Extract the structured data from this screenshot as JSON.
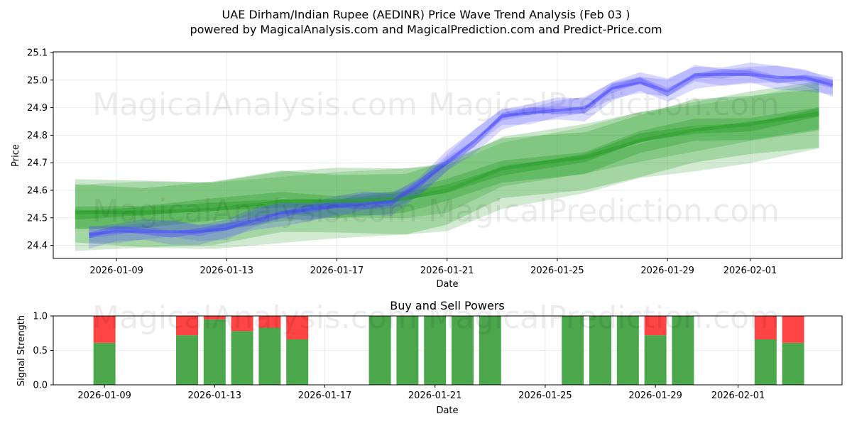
{
  "title_line1": "UAE Dirham/Indian Rupee (AEDINR) Price Wave Trend Analysis (Feb 03 )",
  "title_line2": "powered by MagicalAnalysis.com and MagicalPrediction.com and Predict-Price.com",
  "watermarks": [
    "MagicalAnalysis.com",
    "MagicalPrediction.com"
  ],
  "colors": {
    "green": "#2ca02c",
    "blue": "#4444ff",
    "buy": "#4ca64c",
    "sell": "#ff4444"
  },
  "chart_data": [
    {
      "type": "line",
      "title": "",
      "xlabel": "Date",
      "ylabel": "Price",
      "ylim": [
        24.35,
        25.1
      ],
      "xlim": [
        0,
        28.3
      ],
      "x_ticks": [
        {
          "d": 2,
          "label": "2026-01-09"
        },
        {
          "d": 6,
          "label": "2026-01-13"
        },
        {
          "d": 10,
          "label": "2026-01-17"
        },
        {
          "d": 14,
          "label": "2026-01-21"
        },
        {
          "d": 18,
          "label": "2026-01-25"
        },
        {
          "d": 22,
          "label": "2026-01-29"
        },
        {
          "d": 25,
          "label": "2026-02-01"
        }
      ],
      "y_ticks": [
        24.4,
        24.5,
        24.6,
        24.7,
        24.8,
        24.9,
        25.0,
        25.1
      ],
      "series": [
        {
          "name": "price wave (blue)",
          "x": [
            1,
            2,
            3,
            4,
            5,
            6,
            7,
            8,
            9,
            10,
            11,
            12,
            13,
            14,
            15,
            16,
            17,
            18,
            19,
            20,
            21,
            22,
            23,
            24,
            25,
            26,
            27,
            28
          ],
          "values": [
            24.44,
            24.45,
            24.45,
            24.45,
            24.45,
            24.46,
            24.49,
            24.52,
            24.53,
            24.54,
            24.55,
            24.56,
            24.62,
            24.7,
            24.78,
            24.87,
            24.88,
            24.89,
            24.9,
            24.97,
            24.99,
            24.96,
            25.02,
            25.02,
            25.02,
            25.01,
            25.01,
            24.98
          ]
        },
        {
          "name": "trend wave (green)",
          "x": [
            0.5,
            3,
            5.5,
            8,
            10,
            12.5,
            14,
            16,
            19,
            21,
            23,
            25,
            27.5
          ],
          "values": [
            24.52,
            24.52,
            24.53,
            24.56,
            24.56,
            24.57,
            24.6,
            24.68,
            24.72,
            24.78,
            24.82,
            24.84,
            24.88
          ]
        }
      ]
    },
    {
      "type": "bar",
      "title": "Buy and Sell Powers",
      "xlabel": "Date",
      "ylabel": "Signal Strength",
      "ylim": [
        0,
        1
      ],
      "y_ticks": [
        "0.0",
        "0.5",
        "1.0"
      ],
      "series": [
        {
          "name": "buy",
          "x": [
            2,
            5,
            6,
            7,
            8,
            9,
            12,
            13,
            14,
            15,
            16,
            19,
            20,
            21,
            22,
            23,
            26,
            27
          ],
          "values": [
            0.61,
            0.72,
            0.95,
            0.78,
            0.83,
            0.66,
            1.0,
            1.0,
            1.0,
            1.0,
            1.0,
            1.0,
            1.0,
            1.0,
            0.72,
            1.0,
            0.66,
            0.61
          ]
        },
        {
          "name": "sell",
          "x": [
            2,
            5,
            6,
            7,
            8,
            9,
            12,
            13,
            14,
            15,
            16,
            19,
            20,
            21,
            22,
            23,
            26,
            27
          ],
          "values": [
            0.39,
            0.28,
            0.05,
            0.22,
            0.17,
            0.34,
            0.0,
            0.0,
            0.0,
            0.0,
            0.0,
            0.0,
            0.0,
            0.0,
            0.28,
            0.0,
            0.34,
            0.39
          ]
        }
      ]
    }
  ]
}
